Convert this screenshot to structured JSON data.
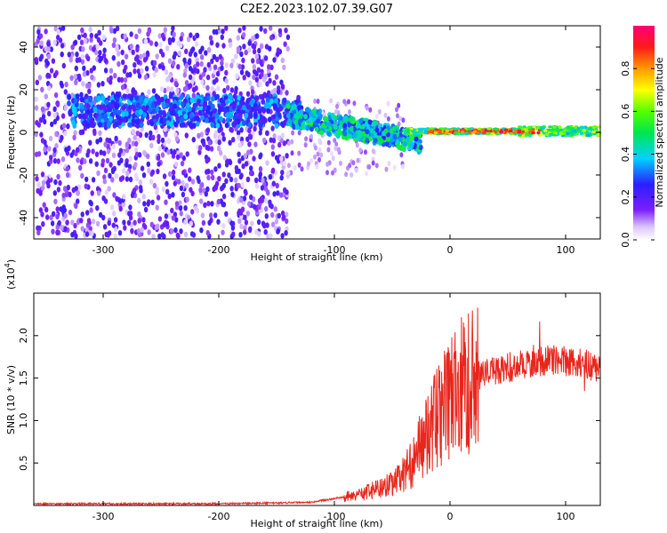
{
  "title": "C2E2.2023.102.07.39.G07",
  "colors": {
    "snr_line": "#e8261c",
    "axis": "#000000",
    "background": "#ffffff"
  },
  "chart_data": [
    {
      "type": "heatmap",
      "xlabel": "Height of straight line (km)",
      "ylabel": "Frequency (Hz)",
      "xlim": [
        -360,
        130
      ],
      "ylim": [
        -50,
        50
      ],
      "x_ticks": [
        -300,
        -200,
        -100,
        0,
        100
      ],
      "y_ticks": [
        -40,
        -20,
        0,
        20,
        40
      ],
      "colorbar": {
        "label": "Normalized spectral amplitude",
        "range": [
          0,
          1
        ],
        "ticks": [
          "0.0",
          "0.2",
          "0.4",
          "0.6",
          "0.8"
        ],
        "colormap": "rainbow (white→violet→blue→cyan→green→yellow→orange→red→magenta)"
      },
      "grid": false,
      "description_regions": [
        {
          "x_range": [
            -360,
            -140
          ],
          "freq_range": [
            -50,
            50
          ],
          "amplitude": "0.05-0.25 scattered noise"
        },
        {
          "x_range": [
            -330,
            -120
          ],
          "freq_range": [
            2,
            18
          ],
          "amplitude": "0.2-0.4 band"
        },
        {
          "x_range": [
            -140,
            -30
          ],
          "freq_range": [
            -10,
            10
          ],
          "amplitude": "0.3-0.6 descending signal"
        },
        {
          "x_range": [
            -30,
            130
          ],
          "freq_range": [
            -1,
            3
          ],
          "amplitude": "0.6-1.0 narrow carrier line"
        }
      ]
    },
    {
      "type": "line",
      "xlabel": "Height of straight line (km)",
      "ylabel": "SNR (10 * v/v)",
      "y_multiplier_label": "(x10",
      "y_multiplier_exp": "4",
      "xlim": [
        -360,
        130
      ],
      "ylim": [
        0,
        2.5
      ],
      "x_ticks": [
        -300,
        -200,
        -100,
        0,
        100
      ],
      "y_ticks": [
        "0.5",
        "1.0",
        "1.5",
        "2.0"
      ],
      "y_tick_values": [
        0.5,
        1.0,
        1.5,
        2.0
      ],
      "grid": false,
      "series": [
        {
          "color": "#e8261c",
          "x": [
            -360,
            -300,
            -250,
            -200,
            -150,
            -120,
            -100,
            -80,
            -60,
            -45,
            -35,
            -25,
            -15,
            -5,
            0,
            10,
            20,
            30,
            40,
            50,
            60,
            70,
            80,
            90,
            100,
            110,
            120,
            130
          ],
          "y": [
            0.02,
            0.02,
            0.02,
            0.02,
            0.03,
            0.04,
            0.08,
            0.13,
            0.2,
            0.3,
            0.45,
            0.7,
            0.95,
            1.15,
            1.25,
            1.4,
            1.5,
            1.55,
            1.6,
            1.62,
            1.65,
            1.68,
            1.7,
            1.72,
            1.7,
            1.68,
            1.65,
            1.63
          ]
        }
      ]
    }
  ]
}
